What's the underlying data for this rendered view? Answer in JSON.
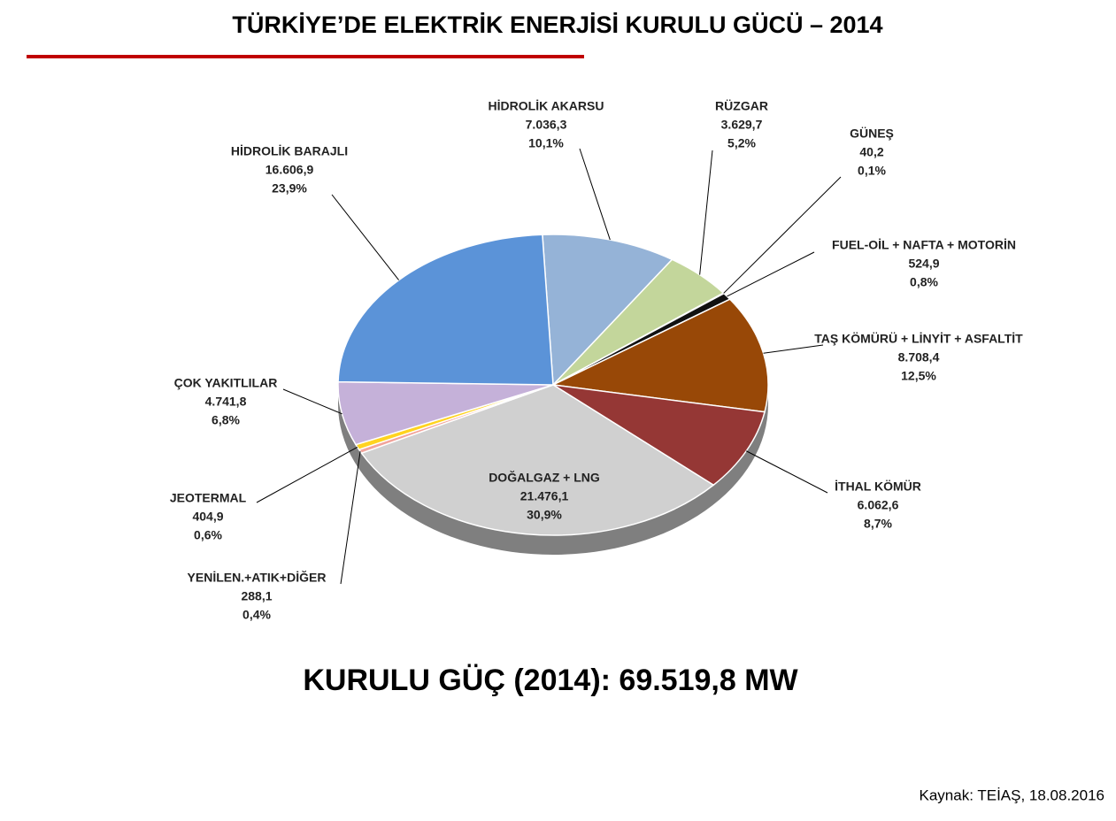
{
  "chart_data": {
    "type": "pie",
    "title": "TÜRKİYE’DE ELEKTRİK ENERJİSİ KURULU GÜCÜ – 2014",
    "total_label": "KURULU GÜÇ (2014): 69.519,8 MW",
    "source": "Kaynak: TEİAŞ, 18.08.2016",
    "categories": [
      "HİDROLİK AKARSU",
      "RÜZGAR",
      "GÜNEŞ",
      "FUEL-OİL + NAFTA + MOTORİN",
      "TAŞ KÖMÜRÜ + LİNYİT + ASFALTİT",
      "İTHAL KÖMÜR",
      "DOĞALGAZ + LNG",
      "YENİLEN.+ATIK+DİĞER",
      "JEOTERMAL",
      "ÇOK YAKITLILAR",
      "HİDROLİK BARAJLI"
    ],
    "values": [
      7036.3,
      3629.7,
      40.2,
      524.9,
      8708.4,
      6062.6,
      21476.1,
      288.1,
      404.9,
      4741.8,
      16606.9
    ],
    "value_labels": [
      "7.036,3",
      "3.629,7",
      "40,2",
      "524,9",
      "8.708,4",
      "6.062,6",
      "21.476,1",
      "288,1",
      "404,9",
      "4.741,8",
      "16.606,9"
    ],
    "percent_labels": [
      "10,1%",
      "5,2%",
      "0,1%",
      "0,8%",
      "12,5%",
      "8,7%",
      "30,9%",
      "0,4%",
      "0,6%",
      "6,8%",
      "23,9%"
    ],
    "colors": [
      "#95b3d7",
      "#c3d69b",
      "#4f81bd",
      "#111111",
      "#984807",
      "#953735",
      "#d0d0d0",
      "#f2a49c",
      "#ffd320",
      "#c5b1d9",
      "#5b93d8"
    ]
  }
}
